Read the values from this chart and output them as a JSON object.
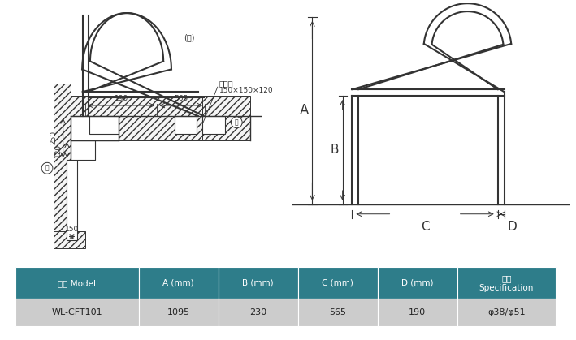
{
  "bg_color": "#ffffff",
  "table_header_color": "#2e7d8a",
  "table_row_color": "#cccccc",
  "table_text_color_header": "#ffffff",
  "table_text_color_row": "#222222",
  "table_header_labels": [
    "型号 Model",
    "A (mm)",
    "B (mm)",
    "C (mm)",
    "D (mm)",
    "规格\nSpecification"
  ],
  "table_row_data": [
    "WL-CFT101",
    "1095",
    "230",
    "565",
    "190",
    "φ38/φ51"
  ],
  "lc": "#333333",
  "hatch_color": "#aaaaaa"
}
